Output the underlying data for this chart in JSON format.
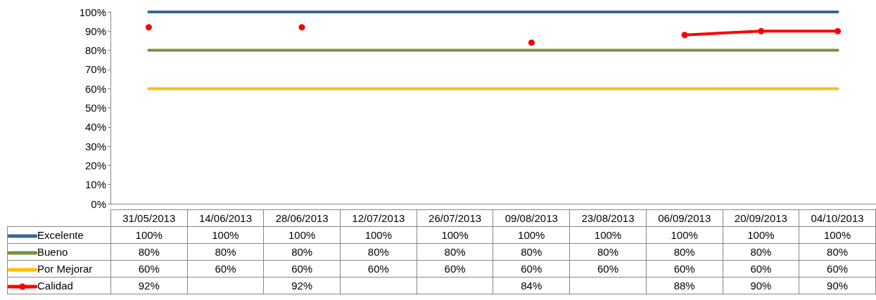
{
  "chart_data": {
    "type": "line",
    "categories": [
      "31/05/2013",
      "14/06/2013",
      "28/06/2013",
      "12/07/2013",
      "26/07/2013",
      "09/08/2013",
      "23/08/2013",
      "06/09/2013",
      "20/09/2013",
      "04/10/2013"
    ],
    "series": [
      {
        "name": "Excelente",
        "color": "#3b6596",
        "marker": "none",
        "values": [
          100,
          100,
          100,
          100,
          100,
          100,
          100,
          100,
          100,
          100
        ],
        "value_labels": [
          "100%",
          "100%",
          "100%",
          "100%",
          "100%",
          "100%",
          "100%",
          "100%",
          "100%",
          "100%"
        ]
      },
      {
        "name": "Bueno",
        "color": "#77933c",
        "marker": "none",
        "values": [
          80,
          80,
          80,
          80,
          80,
          80,
          80,
          80,
          80,
          80
        ],
        "value_labels": [
          "80%",
          "80%",
          "80%",
          "80%",
          "80%",
          "80%",
          "80%",
          "80%",
          "80%",
          "80%"
        ]
      },
      {
        "name": "Por Mejorar",
        "color": "#ffc000",
        "marker": "none",
        "values": [
          60,
          60,
          60,
          60,
          60,
          60,
          60,
          60,
          60,
          60
        ],
        "value_labels": [
          "60%",
          "60%",
          "60%",
          "60%",
          "60%",
          "60%",
          "60%",
          "60%",
          "60%",
          "60%"
        ]
      },
      {
        "name": "Calidad",
        "color": "#ff0000",
        "marker": "circle",
        "values": [
          92,
          null,
          92,
          null,
          null,
          84,
          null,
          88,
          90,
          90
        ],
        "value_labels": [
          "92%",
          null,
          "92%",
          null,
          null,
          "84%",
          null,
          "88%",
          "90%",
          "90%"
        ]
      }
    ],
    "ylim": [
      0,
      100
    ],
    "yticks": [
      {
        "value": 0,
        "label": "0%"
      },
      {
        "value": 10,
        "label": "10%"
      },
      {
        "value": 20,
        "label": "20%"
      },
      {
        "value": 30,
        "label": "30%"
      },
      {
        "value": 40,
        "label": "40%"
      },
      {
        "value": 50,
        "label": "50%"
      },
      {
        "value": 60,
        "label": "60%"
      },
      {
        "value": 70,
        "label": "70%"
      },
      {
        "value": 80,
        "label": "80%"
      },
      {
        "value": 90,
        "label": "90%"
      },
      {
        "value": 100,
        "label": "100%"
      }
    ],
    "grid": false,
    "legend": "bottom",
    "line_style": "solid"
  }
}
